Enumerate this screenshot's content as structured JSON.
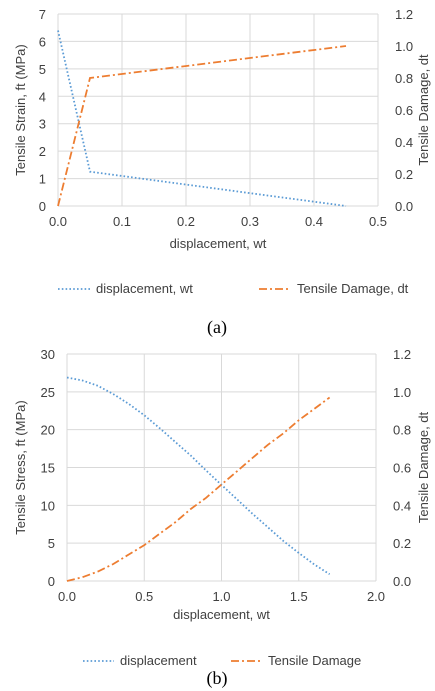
{
  "colors": {
    "blue": "#5B9BD5",
    "orange": "#ED7D31",
    "grid": "#D9D9D9",
    "text": "#404040"
  },
  "chart_data": [
    {
      "type": "line",
      "caption": "(a)",
      "xlabel": "displacement, wt",
      "ylabel": "Tensile Strain, ft (MPa)",
      "y2label": "Tensile Damage, dt",
      "xlim": [
        0,
        0.5
      ],
      "ylim": [
        0,
        7
      ],
      "y2lim": [
        0,
        1.2
      ],
      "xticks": [
        "0.0",
        "0.1",
        "0.2",
        "0.3",
        "0.4",
        "0.5"
      ],
      "yticks": [
        "0",
        "1",
        "2",
        "3",
        "4",
        "5",
        "6",
        "7"
      ],
      "y2ticks": [
        "0.0",
        "0.2",
        "0.4",
        "0.6",
        "0.8",
        "1.0",
        "1.2"
      ],
      "grid": true,
      "legend": "bottom",
      "series": [
        {
          "name": "displacement, wt",
          "axis": "left",
          "style": "dotted",
          "color": "#5B9BD5",
          "x": [
            0,
            0.05,
            0.45
          ],
          "y": [
            6.4,
            1.25,
            0
          ]
        },
        {
          "name": "Tensile Damage, dt",
          "axis": "right",
          "style": "dashdot",
          "color": "#ED7D31",
          "x": [
            0,
            0.05,
            0.45
          ],
          "y": [
            0,
            0.8,
            1.0
          ]
        }
      ]
    },
    {
      "type": "line",
      "caption": "(b)",
      "xlabel": "displacement, wt",
      "ylabel": "Tensile Stress, ft (MPa)",
      "y2label": "Tensile Damage, dt",
      "xlim": [
        0,
        2.0
      ],
      "ylim": [
        0,
        30
      ],
      "y2lim": [
        0,
        1.2
      ],
      "xticks": [
        "0.0",
        "0.5",
        "1.0",
        "1.5",
        "2.0"
      ],
      "yticks": [
        "0",
        "5",
        "10",
        "15",
        "20",
        "25",
        "30"
      ],
      "y2ticks": [
        "0.0",
        "0.2",
        "0.4",
        "0.6",
        "0.8",
        "1.0",
        "1.2"
      ],
      "grid": true,
      "legend": "bottom",
      "series": [
        {
          "name": "displacement",
          "axis": "left",
          "style": "dotted",
          "color": "#5B9BD5",
          "x": [
            0,
            0.1,
            0.2,
            0.3,
            0.4,
            0.5,
            0.6,
            0.7,
            0.8,
            0.9,
            1.0,
            1.1,
            1.2,
            1.3,
            1.4,
            1.5,
            1.6,
            1.7
          ],
          "y": [
            26.9,
            26.5,
            25.8,
            24.7,
            23.4,
            21.9,
            20.2,
            18.4,
            16.6,
            14.6,
            12.7,
            10.8,
            8.9,
            7.1,
            5.3,
            3.7,
            2.2,
            0.9
          ]
        },
        {
          "name": "Tensile Damage",
          "axis": "right",
          "style": "dashdot",
          "color": "#ED7D31",
          "x": [
            0,
            0.1,
            0.2,
            0.3,
            0.4,
            0.5,
            0.6,
            0.7,
            0.8,
            0.9,
            1.0,
            1.1,
            1.2,
            1.3,
            1.4,
            1.5,
            1.6,
            1.7
          ],
          "y": [
            0.0,
            0.02,
            0.05,
            0.09,
            0.14,
            0.19,
            0.25,
            0.31,
            0.38,
            0.44,
            0.51,
            0.58,
            0.65,
            0.72,
            0.78,
            0.85,
            0.91,
            0.97
          ]
        }
      ]
    }
  ]
}
